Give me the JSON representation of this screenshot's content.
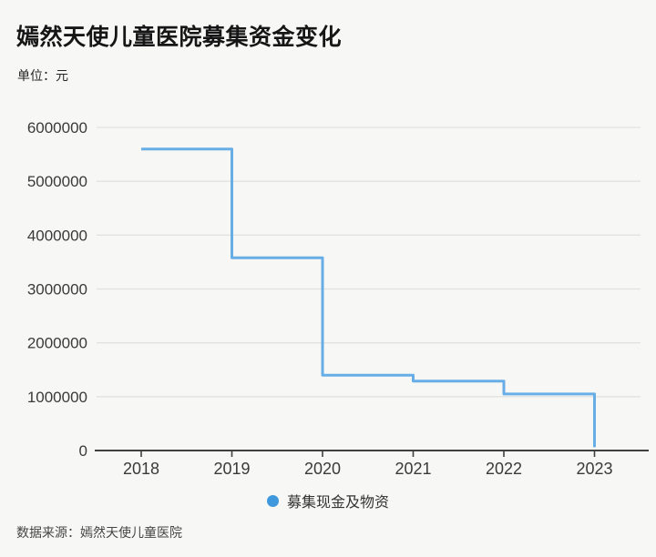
{
  "header": {
    "title": "嫣然天使儿童医院募集资金变化",
    "unit_label": "单位：元"
  },
  "legend": {
    "items": [
      {
        "label": "募集现金及物资",
        "color": "#3F98DD"
      }
    ]
  },
  "footer": {
    "source": "数据来源：嫣然天使儿童医院"
  },
  "colors": {
    "background": "#f7f7f5",
    "line": "#68AEE6",
    "grid": "#e2e2e0",
    "axis": "#40403E",
    "tick_text": "#3A3A38"
  },
  "chart_data": {
    "type": "line",
    "subtype": "step-after",
    "title": "嫣然天使儿童医院募集资金变化",
    "ylabel": "单位：元",
    "categories": [
      "2018",
      "2019",
      "2020",
      "2021",
      "2022",
      "2023"
    ],
    "series": [
      {
        "name": "募集现金及物资",
        "values": [
          5600000,
          3580000,
          1400000,
          1290000,
          1050000,
          60000
        ]
      }
    ],
    "ylim": [
      0,
      6000000
    ],
    "yticks": [
      0,
      1000000,
      2000000,
      3000000,
      4000000,
      5000000,
      6000000
    ],
    "grid": true,
    "legend_position": "bottom"
  }
}
